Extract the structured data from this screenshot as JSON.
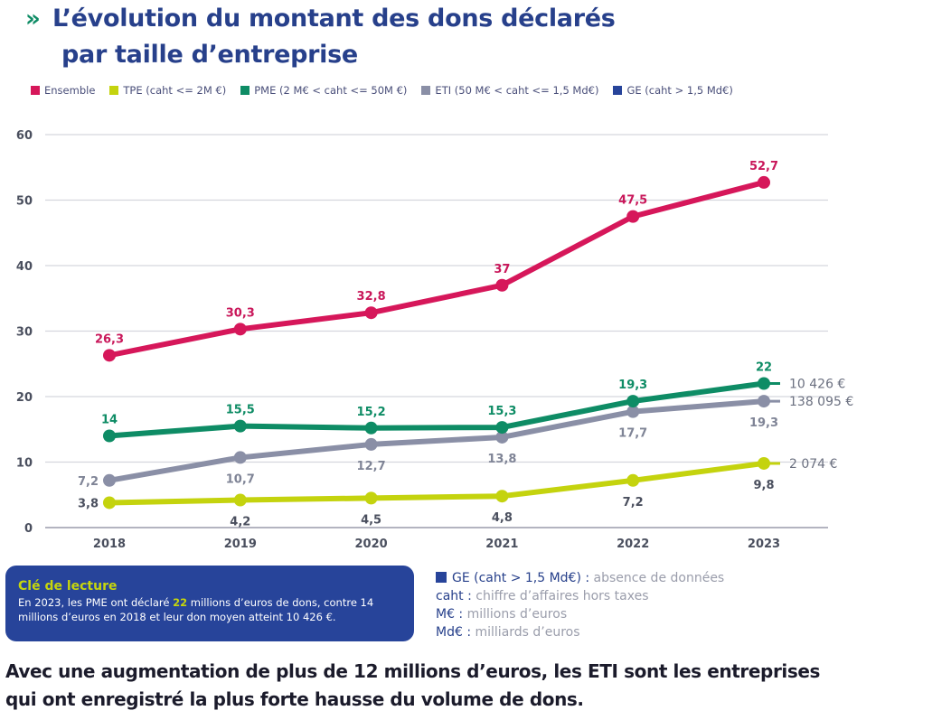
{
  "header": {
    "chevron_icon": "»",
    "title_line1": "L’évolution du montant des dons déclarés",
    "title_line2": "par taille d’entreprise"
  },
  "legend": [
    {
      "label": "Ensemble",
      "color": "#d6175a"
    },
    {
      "label": "TPE (caht <= 2M €)",
      "color": "#c4d30e"
    },
    {
      "label": "PME (2 M€ < caht <= 50M €)",
      "color": "#0e8c65"
    },
    {
      "label": "ETI (50 M€ < caht <= 1,5 Md€)",
      "color": "#8a8fa6"
    },
    {
      "label": "GE (caht > 1,5 Md€)",
      "color": "#27449a"
    }
  ],
  "chart_data": {
    "type": "line",
    "title": "L’évolution du montant des dons déclarés par taille d’entreprise",
    "xlabel": "",
    "ylabel": "",
    "x": [
      "2018",
      "2019",
      "2020",
      "2021",
      "2022",
      "2023"
    ],
    "yticks": [
      "0",
      "10",
      "20",
      "30",
      "40",
      "50",
      "60"
    ],
    "ylim": [
      0,
      60
    ],
    "grid": true,
    "legend_position": "top",
    "series": [
      {
        "name": "Ensemble",
        "color": "#d6175a",
        "label_color": "#c9175a",
        "values": [
          26.3,
          30.3,
          32.8,
          37,
          47.5,
          52.7
        ],
        "labels": [
          "26,3",
          "30,3",
          "32,8",
          "37",
          "47,5",
          "52,7"
        ],
        "label_pos": [
          "above",
          "above",
          "above",
          "above",
          "above",
          "above"
        ],
        "end_label": ""
      },
      {
        "name": "PME (2 M€ < caht <= 50M €)",
        "color": "#0e8c65",
        "label_color": "#0e8c65",
        "values": [
          14,
          15.5,
          15.2,
          15.3,
          19.3,
          22
        ],
        "labels": [
          "14",
          "15,5",
          "15,2",
          "15,3",
          "19,3",
          "22"
        ],
        "label_pos": [
          "above",
          "above",
          "above",
          "above",
          "above",
          "above"
        ],
        "end_label": "10 426 €"
      },
      {
        "name": "ETI (50 M€ < caht <= 1,5 Md€)",
        "color": "#8a8fa6",
        "label_color": "#7f8496",
        "values": [
          7.2,
          10.7,
          12.7,
          13.8,
          17.7,
          19.3
        ],
        "labels": [
          "7,2",
          "10,7",
          "12,7",
          "13,8",
          "17,7",
          "19,3"
        ],
        "label_pos": [
          "left",
          "below",
          "below",
          "below",
          "below",
          "below"
        ],
        "end_label": "138 095 €"
      },
      {
        "name": "TPE (caht <= 2M €)",
        "color": "#c4d30e",
        "label_color": "#4a4f5e",
        "values": [
          3.8,
          4.2,
          4.5,
          4.8,
          7.2,
          9.8
        ],
        "labels": [
          "3,8",
          "4,2",
          "4,5",
          "4,8",
          "7,2",
          "9,8"
        ],
        "label_pos": [
          "left",
          "below",
          "below",
          "below",
          "below",
          "below"
        ],
        "end_label": "2 074 €"
      }
    ],
    "annotations": [
      "10 426 €",
      "138 095 €",
      "2 074 €"
    ]
  },
  "key_box": {
    "title": "Clé de lecture",
    "text_before": "En 2023, les PME ont déclaré ",
    "highlight": "22",
    "text_after": " millions d’euros de dons, contre 14 millions d’euros en 2018 et leur don moyen atteint 10 426 €."
  },
  "notes": [
    {
      "term": "GE (caht > 1,5 Md€) :",
      "def": " absence de données",
      "square": true
    },
    {
      "term": "caht :",
      "def": " chiffre d’affaires hors taxes",
      "square": false
    },
    {
      "term": "M€ :",
      "def": " millions d’euros",
      "square": false
    },
    {
      "term": "Md€ :",
      "def": " milliards d’euros",
      "square": false
    }
  ],
  "conclusion": {
    "line1": "Avec une augmentation de plus de 12 millions d’euros, les ETI sont les entreprises",
    "line2": "qui ont enregistré la plus forte hausse du volume de dons."
  }
}
